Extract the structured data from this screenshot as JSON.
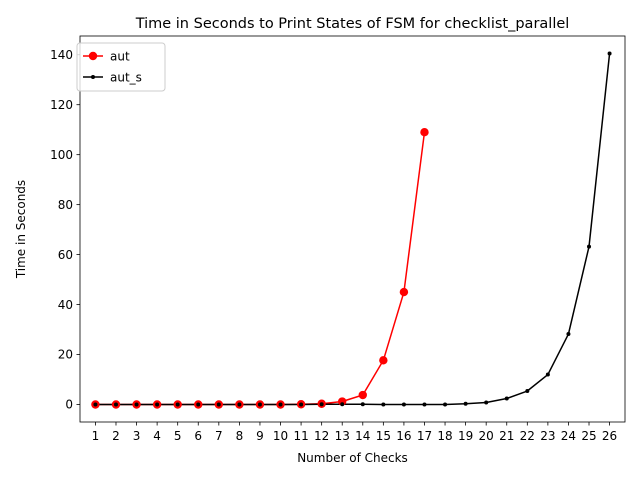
{
  "chart_data": {
    "type": "line",
    "title": "Time in Seconds to Print States of FSM for checklist_parallel",
    "xlabel": "Number of Checks",
    "ylabel": "Time in Seconds",
    "x": [
      1,
      2,
      3,
      4,
      5,
      6,
      7,
      8,
      9,
      10,
      11,
      12,
      13,
      14,
      15,
      16,
      17,
      18,
      19,
      20,
      21,
      22,
      23,
      24,
      25,
      26
    ],
    "xticks": [
      "1",
      "2",
      "3",
      "4",
      "5",
      "6",
      "7",
      "8",
      "9",
      "10",
      "11",
      "12",
      "13",
      "14",
      "15",
      "16",
      "17",
      "18",
      "19",
      "20",
      "21",
      "22",
      "23",
      "24",
      "25",
      "26"
    ],
    "xlim": [
      0.25,
      26.75
    ],
    "ylim": [
      -7,
      147.5
    ],
    "yticks": [
      0,
      20,
      40,
      60,
      80,
      100,
      120,
      140
    ],
    "legend_position": "top-left",
    "series": [
      {
        "name": "aut",
        "color": "#ff0000",
        "marker": "large-circle",
        "x": [
          1,
          2,
          3,
          4,
          5,
          6,
          7,
          8,
          9,
          10,
          11,
          12,
          13,
          14,
          15,
          16,
          17
        ],
        "values": [
          0,
          0,
          0,
          0,
          0,
          0,
          0,
          0,
          0,
          0,
          0.1,
          0.3,
          1.2,
          3.8,
          17.7,
          45.0,
          109.0
        ]
      },
      {
        "name": "aut_s",
        "color": "#000000",
        "marker": "small-dot",
        "x": [
          1,
          2,
          3,
          4,
          5,
          6,
          7,
          8,
          9,
          10,
          11,
          12,
          13,
          14,
          15,
          16,
          17,
          18,
          19,
          20,
          21,
          22,
          23,
          24,
          25,
          26
        ],
        "values": [
          0,
          0,
          0,
          0,
          0,
          0,
          0,
          0,
          0,
          0,
          0,
          0.1,
          0.1,
          0.1,
          0,
          0,
          0,
          0,
          0.3,
          0.8,
          2.4,
          5.4,
          12.0,
          28.2,
          63.2,
          140.5
        ]
      }
    ]
  }
}
